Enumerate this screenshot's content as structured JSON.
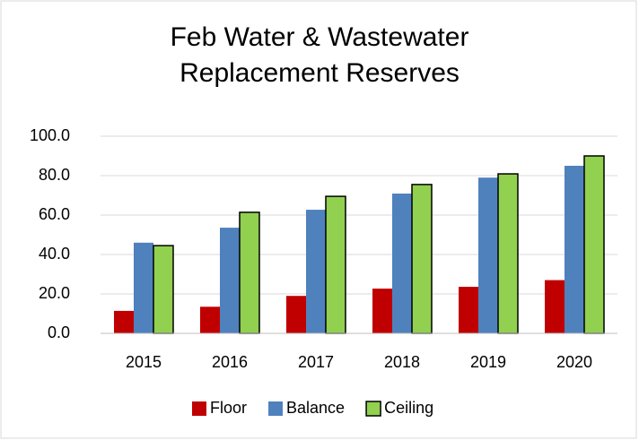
{
  "chart_data": {
    "type": "bar",
    "title": "Feb Water & Wastewater Replacement Reserves",
    "categories": [
      "2015",
      "2016",
      "2017",
      "2018",
      "2019",
      "2020"
    ],
    "series": [
      {
        "name": "Floor",
        "color": "#c00000",
        "values": [
          11.4,
          13.5,
          19.0,
          22.7,
          23.6,
          27.0
        ]
      },
      {
        "name": "Balance",
        "color": "#4f81bd",
        "values": [
          46.0,
          53.6,
          62.7,
          70.9,
          79.0,
          85.0
        ]
      },
      {
        "name": "Ceiling",
        "color": "#92d050",
        "edgecolor": "#000000",
        "values": [
          44.5,
          61.4,
          69.5,
          75.5,
          80.9,
          90.0
        ]
      }
    ],
    "ylim": [
      0,
      100
    ],
    "yticks": [
      {
        "value": 0,
        "label": "0.0"
      },
      {
        "value": 20,
        "label": "20.0"
      },
      {
        "value": 40,
        "label": "40.0"
      },
      {
        "value": 60,
        "label": "60.0"
      },
      {
        "value": 80,
        "label": "80.0"
      },
      {
        "value": 100,
        "label": "100.0"
      }
    ],
    "grid": true,
    "legend": "bottom"
  }
}
